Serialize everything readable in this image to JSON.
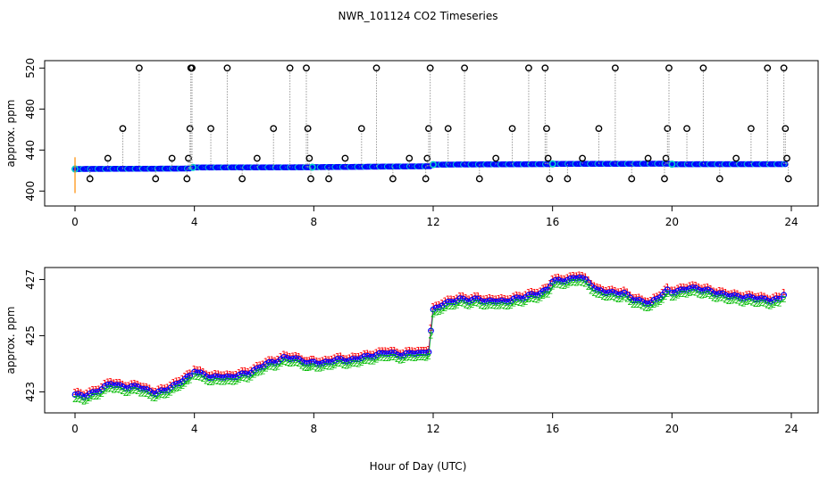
{
  "title": "NWR_101124  CO2 Timeseries",
  "xlabel": "Hour of Day (UTC)",
  "chart_data": [
    {
      "type": "scatter",
      "ylabel": "approx. ppm",
      "xlim": [
        0,
        24
      ],
      "ylim": [
        395,
        522
      ],
      "xticks": [
        0,
        4,
        8,
        12,
        16,
        20,
        24
      ],
      "yticks": [
        400,
        440,
        480,
        520
      ],
      "colors": {
        "baseline": "#0000ff",
        "baseline_edge": "#00cccc",
        "spike": "#000000",
        "connector": "#999999",
        "marker": "#ff8c00"
      },
      "baseline_segments": [
        {
          "x": [
            0.0,
            3.85
          ],
          "y": [
            421.5,
            422.0
          ]
        },
        {
          "x": [
            3.95,
            7.85
          ],
          "y": [
            423.0,
            423.2
          ]
        },
        {
          "x": [
            7.95,
            11.9
          ],
          "y": [
            423.3,
            424.2
          ]
        },
        {
          "x": [
            12.0,
            15.9
          ],
          "y": [
            425.8,
            426.3
          ]
        },
        {
          "x": [
            16.0,
            19.9
          ],
          "y": [
            426.5,
            426.7
          ]
        },
        {
          "x": [
            20.0,
            23.8
          ],
          "y": [
            426.2,
            426.3
          ]
        }
      ],
      "spikes": [
        {
          "x": 0.5,
          "y": 412
        },
        {
          "x": 1.1,
          "y": 432
        },
        {
          "x": 1.6,
          "y": 461
        },
        {
          "x": 2.15,
          "y": 520
        },
        {
          "x": 2.7,
          "y": 412
        },
        {
          "x": 3.25,
          "y": 432
        },
        {
          "x": 3.75,
          "y": 412
        },
        {
          "x": 3.8,
          "y": 432
        },
        {
          "x": 3.85,
          "y": 461
        },
        {
          "x": 3.88,
          "y": 520
        },
        {
          "x": 3.92,
          "y": 520
        },
        {
          "x": 4.55,
          "y": 461
        },
        {
          "x": 5.1,
          "y": 520
        },
        {
          "x": 5.6,
          "y": 412
        },
        {
          "x": 6.1,
          "y": 432
        },
        {
          "x": 6.65,
          "y": 461
        },
        {
          "x": 7.2,
          "y": 520
        },
        {
          "x": 7.75,
          "y": 520
        },
        {
          "x": 7.8,
          "y": 461
        },
        {
          "x": 7.85,
          "y": 432
        },
        {
          "x": 7.9,
          "y": 412
        },
        {
          "x": 8.5,
          "y": 412
        },
        {
          "x": 9.05,
          "y": 432
        },
        {
          "x": 9.6,
          "y": 461
        },
        {
          "x": 10.1,
          "y": 520
        },
        {
          "x": 10.65,
          "y": 412
        },
        {
          "x": 11.2,
          "y": 432
        },
        {
          "x": 11.75,
          "y": 412
        },
        {
          "x": 11.8,
          "y": 432
        },
        {
          "x": 11.85,
          "y": 461
        },
        {
          "x": 11.9,
          "y": 520
        },
        {
          "x": 12.5,
          "y": 461
        },
        {
          "x": 13.05,
          "y": 520
        },
        {
          "x": 13.55,
          "y": 412
        },
        {
          "x": 14.1,
          "y": 432
        },
        {
          "x": 14.65,
          "y": 461
        },
        {
          "x": 15.2,
          "y": 520
        },
        {
          "x": 15.75,
          "y": 520
        },
        {
          "x": 15.8,
          "y": 461
        },
        {
          "x": 15.85,
          "y": 432
        },
        {
          "x": 15.9,
          "y": 412
        },
        {
          "x": 16.5,
          "y": 412
        },
        {
          "x": 17.0,
          "y": 432
        },
        {
          "x": 17.55,
          "y": 461
        },
        {
          "x": 18.1,
          "y": 520
        },
        {
          "x": 18.65,
          "y": 412
        },
        {
          "x": 19.2,
          "y": 432
        },
        {
          "x": 19.75,
          "y": 412
        },
        {
          "x": 19.8,
          "y": 432
        },
        {
          "x": 19.85,
          "y": 461
        },
        {
          "x": 19.9,
          "y": 520
        },
        {
          "x": 20.5,
          "y": 461
        },
        {
          "x": 21.05,
          "y": 520
        },
        {
          "x": 21.6,
          "y": 412
        },
        {
          "x": 22.15,
          "y": 432
        },
        {
          "x": 22.65,
          "y": 461
        },
        {
          "x": 23.2,
          "y": 520
        },
        {
          "x": 23.75,
          "y": 520
        },
        {
          "x": 23.8,
          "y": 461
        },
        {
          "x": 23.85,
          "y": 432
        },
        {
          "x": 23.9,
          "y": 412
        }
      ]
    },
    {
      "type": "line",
      "ylabel": "approx. ppm",
      "xlim": [
        0,
        24
      ],
      "ylim": [
        422.6,
        427.3
      ],
      "xticks": [
        0,
        4,
        8,
        12,
        16,
        20,
        24
      ],
      "yticks": [
        423,
        425,
        427
      ],
      "series": [
        {
          "symbol": "1",
          "color": "#ff0000",
          "offset": 0.12
        },
        {
          "symbol": "o",
          "color": "#0000ff",
          "offset": 0.0
        },
        {
          "symbol": "2",
          "color": "#00bb00",
          "offset": -0.14
        }
      ],
      "points": [
        [
          0.0,
          422.9
        ],
        [
          0.3,
          422.85
        ],
        [
          0.6,
          422.95
        ],
        [
          0.9,
          423.1
        ],
        [
          1.2,
          423.3
        ],
        [
          1.5,
          423.2
        ],
        [
          1.8,
          423.15
        ],
        [
          2.1,
          423.2
        ],
        [
          2.4,
          423.05
        ],
        [
          2.7,
          422.95
        ],
        [
          3.0,
          423.05
        ],
        [
          3.3,
          423.2
        ],
        [
          3.6,
          423.4
        ],
        [
          3.85,
          423.55
        ],
        [
          4.0,
          423.75
        ],
        [
          4.3,
          423.6
        ],
        [
          4.6,
          423.5
        ],
        [
          4.9,
          423.55
        ],
        [
          5.2,
          423.5
        ],
        [
          5.5,
          423.6
        ],
        [
          5.8,
          423.65
        ],
        [
          6.1,
          423.8
        ],
        [
          6.4,
          424.0
        ],
        [
          6.7,
          424.05
        ],
        [
          7.0,
          424.2
        ],
        [
          7.3,
          424.2
        ],
        [
          7.6,
          424.1
        ],
        [
          7.85,
          424.0
        ],
        [
          8.0,
          424.05
        ],
        [
          8.3,
          424.0
        ],
        [
          8.6,
          424.1
        ],
        [
          8.9,
          424.15
        ],
        [
          9.2,
          424.1
        ],
        [
          9.5,
          424.2
        ],
        [
          9.8,
          424.25
        ],
        [
          10.1,
          424.3
        ],
        [
          10.4,
          424.4
        ],
        [
          10.7,
          424.35
        ],
        [
          11.0,
          424.3
        ],
        [
          11.3,
          424.4
        ],
        [
          11.6,
          424.35
        ],
        [
          11.85,
          424.45
        ],
        [
          12.0,
          425.9
        ],
        [
          12.3,
          426.1
        ],
        [
          12.6,
          426.2
        ],
        [
          12.9,
          426.3
        ],
        [
          13.2,
          426.25
        ],
        [
          13.5,
          426.3
        ],
        [
          13.8,
          426.2
        ],
        [
          14.1,
          426.25
        ],
        [
          14.4,
          426.2
        ],
        [
          14.7,
          426.3
        ],
        [
          15.0,
          426.35
        ],
        [
          15.3,
          426.45
        ],
        [
          15.6,
          426.5
        ],
        [
          15.85,
          426.65
        ],
        [
          16.0,
          426.95
        ],
        [
          16.3,
          426.95
        ],
        [
          16.6,
          427.0
        ],
        [
          16.9,
          427.1
        ],
        [
          17.2,
          426.9
        ],
        [
          17.5,
          426.6
        ],
        [
          17.8,
          426.55
        ],
        [
          18.1,
          426.5
        ],
        [
          18.4,
          426.5
        ],
        [
          18.7,
          426.3
        ],
        [
          19.0,
          426.2
        ],
        [
          19.3,
          426.15
        ],
        [
          19.6,
          426.4
        ],
        [
          19.85,
          426.6
        ],
        [
          20.0,
          426.55
        ],
        [
          20.3,
          426.6
        ],
        [
          20.6,
          426.7
        ],
        [
          20.9,
          426.65
        ],
        [
          21.2,
          426.6
        ],
        [
          21.5,
          426.5
        ],
        [
          21.8,
          426.45
        ],
        [
          22.1,
          426.4
        ],
        [
          22.4,
          426.35
        ],
        [
          22.7,
          426.35
        ],
        [
          23.0,
          426.3
        ],
        [
          23.3,
          426.25
        ],
        [
          23.6,
          426.3
        ],
        [
          23.75,
          426.45
        ]
      ]
    }
  ]
}
